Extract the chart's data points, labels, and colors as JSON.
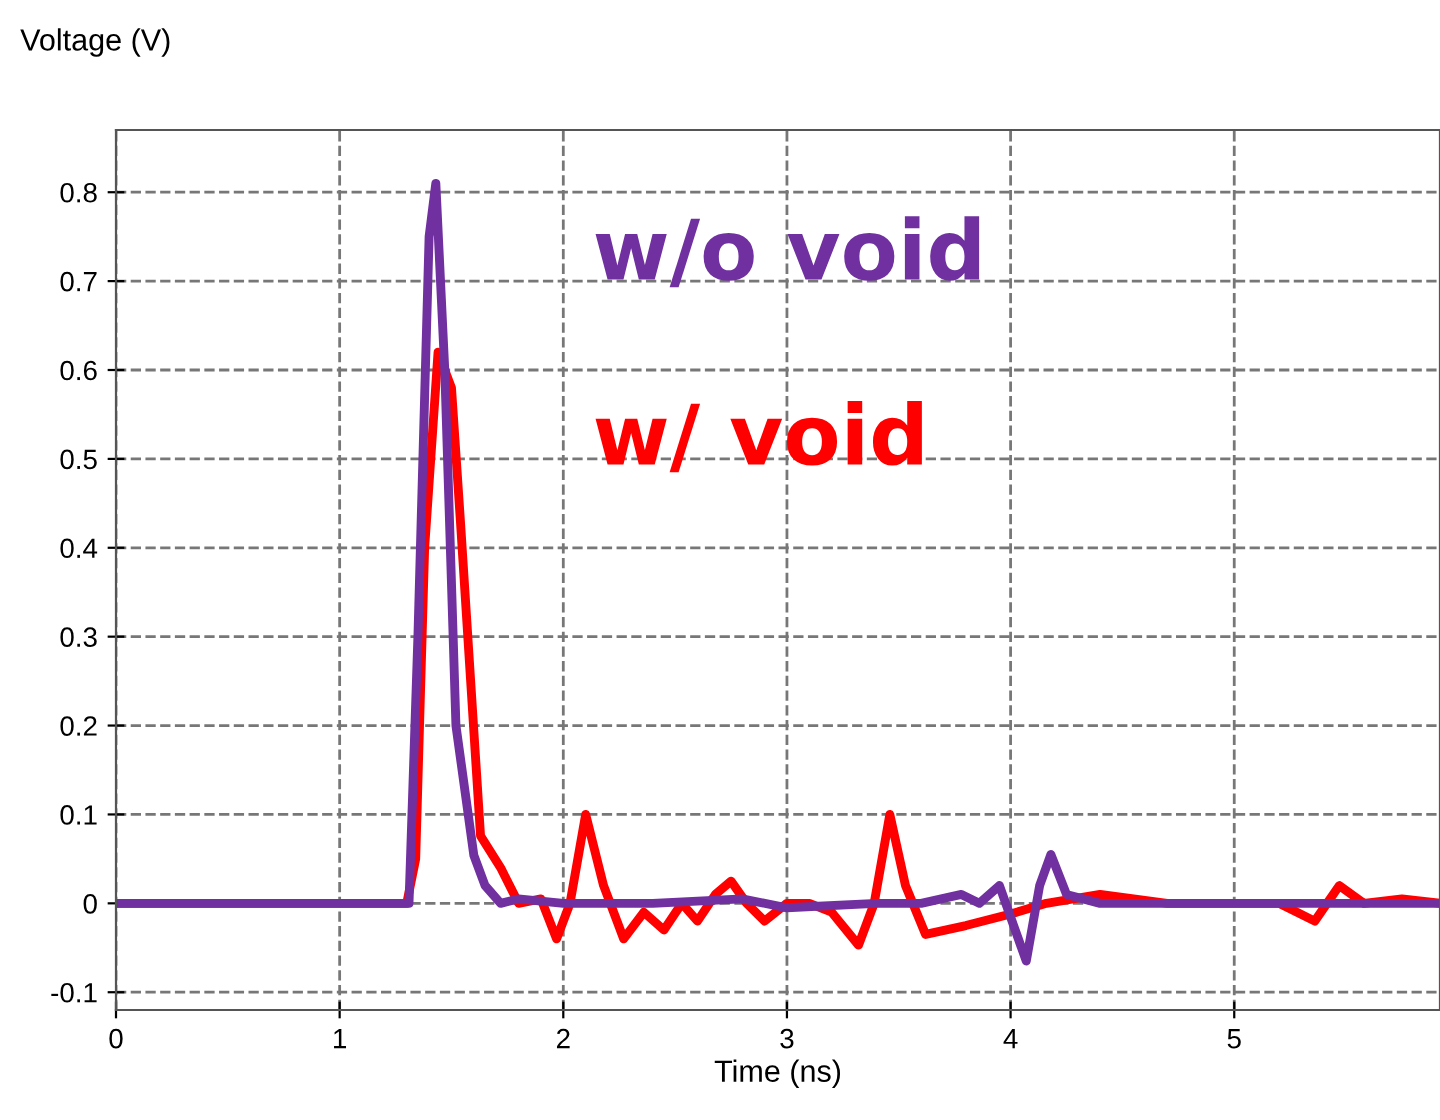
{
  "chart_data": {
    "type": "line",
    "xlabel": "Time (ns)",
    "ylabel": "Voltage (V)",
    "xlim": [
      0,
      5.92
    ],
    "ylim": [
      -0.12,
      0.87
    ],
    "xticks": [
      0,
      1,
      2,
      3,
      4,
      5
    ],
    "yticks": [
      -0.1,
      0,
      0.1,
      0.2,
      0.3,
      0.4,
      0.5,
      0.6,
      0.7,
      0.8
    ],
    "grid": true,
    "line_style": "solid",
    "legend": false,
    "series": [
      {
        "name": "w/ void",
        "color": "#ff0000",
        "x": [
          0,
          1.3,
          1.34,
          1.38,
          1.44,
          1.5,
          1.54,
          1.63,
          1.72,
          1.8,
          1.9,
          1.97,
          2.03,
          2.1,
          2.18,
          2.27,
          2.36,
          2.45,
          2.53,
          2.6,
          2.68,
          2.75,
          2.82,
          2.9,
          3.0,
          3.1,
          3.2,
          3.32,
          3.39,
          3.46,
          3.53,
          3.62,
          3.8,
          4.0,
          4.16,
          4.4,
          4.7,
          5.0,
          5.2,
          5.36,
          5.47,
          5.58,
          5.75,
          5.92
        ],
        "values": [
          0,
          0,
          0.05,
          0.4,
          0.62,
          0.58,
          0.43,
          0.076,
          0.04,
          0.0,
          0.005,
          -0.04,
          0.0,
          0.1,
          0.02,
          -0.04,
          -0.01,
          -0.03,
          0.0,
          -0.02,
          0.01,
          0.025,
          0.0,
          -0.02,
          0.0,
          0.0,
          -0.01,
          -0.047,
          0.0,
          0.1,
          0.02,
          -0.035,
          -0.025,
          -0.012,
          0.0,
          0.01,
          0.0,
          0.0,
          0.0,
          -0.02,
          0.02,
          0.0,
          0.005,
          0.0
        ]
      },
      {
        "name": "w/o void",
        "color": "#7030a0",
        "x": [
          0,
          1.31,
          1.35,
          1.4,
          1.43,
          1.47,
          1.52,
          1.6,
          1.65,
          1.72,
          1.8,
          2.0,
          2.4,
          2.8,
          3.0,
          3.4,
          3.6,
          3.78,
          3.86,
          3.95,
          4.07,
          4.13,
          4.18,
          4.25,
          4.4,
          4.8,
          5.2,
          5.6,
          5.92
        ],
        "values": [
          0,
          0,
          0.3,
          0.75,
          0.81,
          0.6,
          0.2,
          0.054,
          0.02,
          0.0,
          0.005,
          0.0,
          0.0,
          0.005,
          -0.005,
          0.0,
          0.0,
          0.01,
          0.0,
          0.02,
          -0.065,
          0.02,
          0.055,
          0.01,
          0.0,
          0.0,
          0.0,
          0.0,
          0.0
        ]
      }
    ]
  }
}
